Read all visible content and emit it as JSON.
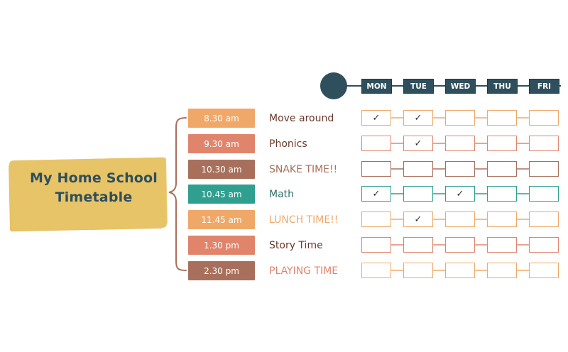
{
  "title": {
    "line1": "My Home School",
    "line2": "Timetable"
  },
  "days": [
    "MON",
    "TUE",
    "WED",
    "THU",
    "FRI"
  ],
  "check_mark": "✓",
  "rows": [
    {
      "time": "8.30 am",
      "activity": "Move around",
      "time_color": "#f0a868",
      "text_color": "#6b3a2a",
      "border_color": "#f0a868",
      "checks": [
        true,
        true,
        false,
        false,
        false
      ]
    },
    {
      "time": "9.30 am",
      "activity": "Phonics",
      "time_color": "#e0856c",
      "text_color": "#6b3a2a",
      "border_color": "#e0856c",
      "checks": [
        false,
        true,
        false,
        false,
        false
      ]
    },
    {
      "time": "10.30 am",
      "activity": "SNAKE TIME!!",
      "time_color": "#a8705c",
      "text_color": "#a8705c",
      "border_color": "#a8705c",
      "checks": [
        false,
        false,
        false,
        false,
        false
      ]
    },
    {
      "time": "10.45 am",
      "activity": "Math",
      "time_color": "#2f9f8f",
      "text_color": "#2f6f6a",
      "border_color": "#2f9f8f",
      "checks": [
        true,
        false,
        true,
        false,
        false
      ]
    },
    {
      "time": "11.45 am",
      "activity": "LUNCH TIME!!",
      "time_color": "#f0a868",
      "text_color": "#f0a868",
      "border_color": "#f0a868",
      "checks": [
        false,
        true,
        false,
        false,
        false
      ]
    },
    {
      "time": "1.30 pm",
      "activity": "Story Time",
      "time_color": "#e0856c",
      "text_color": "#6b3a2a",
      "border_color": "#e0856c",
      "checks": [
        false,
        false,
        false,
        false,
        false
      ]
    },
    {
      "time": "2.30 pm",
      "activity": "PLAYING TIME",
      "time_color": "#a8705c",
      "text_color": "#e0856c",
      "border_color": "#f0a868",
      "checks": [
        false,
        false,
        false,
        false,
        false
      ]
    }
  ],
  "colors": {
    "title_bg": "#e8c468",
    "header": "#2f4f5c",
    "bracket": "#a8705c"
  }
}
